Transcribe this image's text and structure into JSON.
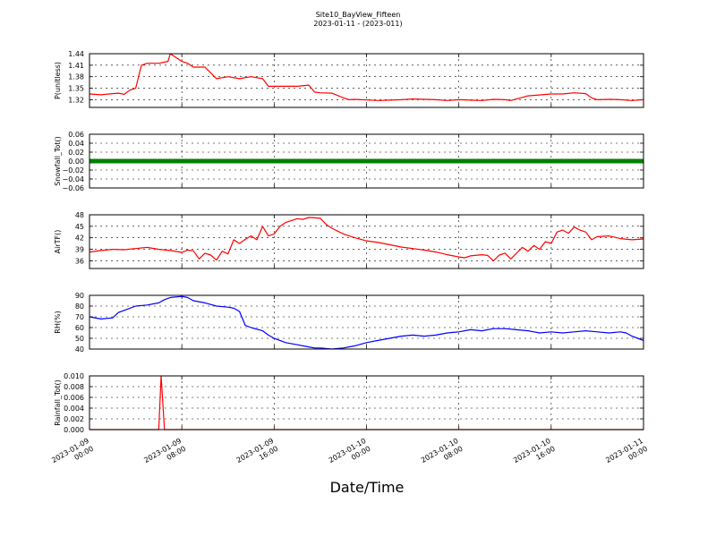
{
  "figure": {
    "title_line1": "Site10_BayView_Fifteen",
    "title_line2": "2023-01-11 - (2023-011)",
    "xlabel": "Date/Time"
  },
  "chart_data": {
    "type": "line",
    "x_ticks": [
      {
        "t": 0,
        "line1": "2023-01-09",
        "line2": "00:00"
      },
      {
        "t": 8,
        "line1": "2023-01-09",
        "line2": "08:00"
      },
      {
        "t": 16,
        "line1": "2023-01-09",
        "line2": "16:00"
      },
      {
        "t": 24,
        "line1": "2023-01-10",
        "line2": "00:00"
      },
      {
        "t": 32,
        "line1": "2023-01-10",
        "line2": "08:00"
      },
      {
        "t": 40,
        "line1": "2023-01-10",
        "line2": "16:00"
      },
      {
        "t": 48,
        "line1": "2023-01-11",
        "line2": "00:00"
      }
    ],
    "xlim": [
      0,
      48
    ],
    "grid": true,
    "panels": [
      {
        "ylabel": "P(unitless)",
        "ylim": [
          1.3,
          1.44
        ],
        "yticks": [
          "1.32",
          "1.35",
          "1.38",
          "1.41",
          "1.44"
        ],
        "ytick_values": [
          1.32,
          1.35,
          1.38,
          1.41,
          1.44
        ],
        "color": "#ff0000",
        "style": "line",
        "series": [
          [
            0,
            1.335
          ],
          [
            1,
            1.333
          ],
          [
            2,
            1.336
          ],
          [
            2.5,
            1.337
          ],
          [
            3,
            1.334
          ],
          [
            3.5,
            1.345
          ],
          [
            4,
            1.35
          ],
          [
            4.5,
            1.41
          ],
          [
            5,
            1.415
          ],
          [
            6,
            1.415
          ],
          [
            6.8,
            1.42
          ],
          [
            7,
            1.44
          ],
          [
            7.5,
            1.43
          ],
          [
            8,
            1.42
          ],
          [
            8.5,
            1.415
          ],
          [
            9,
            1.405
          ],
          [
            10,
            1.405
          ],
          [
            10.5,
            1.39
          ],
          [
            11,
            1.375
          ],
          [
            12,
            1.38
          ],
          [
            13,
            1.375
          ],
          [
            14,
            1.38
          ],
          [
            15,
            1.375
          ],
          [
            15.5,
            1.355
          ],
          [
            16,
            1.355
          ],
          [
            17,
            1.355
          ],
          [
            18,
            1.355
          ],
          [
            19,
            1.358
          ],
          [
            19.5,
            1.34
          ],
          [
            20,
            1.338
          ],
          [
            21,
            1.337
          ],
          [
            22,
            1.325
          ],
          [
            22.5,
            1.32
          ],
          [
            23,
            1.321
          ],
          [
            25,
            1.318
          ],
          [
            26,
            1.319
          ],
          [
            27,
            1.32
          ],
          [
            28,
            1.322
          ],
          [
            29,
            1.321
          ],
          [
            30,
            1.32
          ],
          [
            31,
            1.318
          ],
          [
            32,
            1.32
          ],
          [
            33,
            1.319
          ],
          [
            34,
            1.318
          ],
          [
            35,
            1.321
          ],
          [
            36,
            1.32
          ],
          [
            36.5,
            1.318
          ],
          [
            37,
            1.322
          ],
          [
            38,
            1.33
          ],
          [
            40,
            1.335
          ],
          [
            41,
            1.335
          ],
          [
            42,
            1.338
          ],
          [
            43,
            1.336
          ],
          [
            43.5,
            1.325
          ],
          [
            44,
            1.32
          ],
          [
            45,
            1.321
          ],
          [
            46,
            1.32
          ],
          [
            47,
            1.318
          ],
          [
            48,
            1.32
          ]
        ]
      },
      {
        "ylabel": "Snowfall_Tot()",
        "ylim": [
          -0.06,
          0.06
        ],
        "yticks": [
          "−0.06",
          "−0.04",
          "−0.02",
          "0.00",
          "0.02",
          "0.04",
          "0.06"
        ],
        "ytick_values": [
          -0.06,
          -0.04,
          -0.02,
          0.0,
          0.02,
          0.04,
          0.06
        ],
        "color": "#008000",
        "style": "markers",
        "series": [
          [
            0,
            0
          ],
          [
            48,
            0
          ]
        ]
      },
      {
        "ylabel": "AirTF()",
        "ylim": [
          34,
          48
        ],
        "yticks": [
          "36",
          "39",
          "42",
          "45",
          "48"
        ],
        "ytick_values": [
          36,
          39,
          42,
          45,
          48
        ],
        "color": "#ff0000",
        "style": "line",
        "series": [
          [
            0,
            38.3
          ],
          [
            1,
            38.7
          ],
          [
            2,
            39
          ],
          [
            3,
            38.9
          ],
          [
            4,
            39.2
          ],
          [
            5,
            39.5
          ],
          [
            6,
            39
          ],
          [
            7,
            38.7
          ],
          [
            8,
            38.2
          ],
          [
            8.5,
            38.8
          ],
          [
            9,
            38.6
          ],
          [
            9.5,
            36.5
          ],
          [
            10,
            38
          ],
          [
            10.5,
            37.5
          ],
          [
            11,
            36.2
          ],
          [
            11.5,
            38.5
          ],
          [
            12,
            37.8
          ],
          [
            12.5,
            41.5
          ],
          [
            13,
            40.5
          ],
          [
            13.5,
            41.6
          ],
          [
            14,
            42.5
          ],
          [
            14.5,
            41.5
          ],
          [
            15,
            45
          ],
          [
            15.5,
            42.5
          ],
          [
            16,
            43
          ],
          [
            16.5,
            45
          ],
          [
            17,
            46
          ],
          [
            17.5,
            46.5
          ],
          [
            18,
            47
          ],
          [
            18.5,
            46.8
          ],
          [
            19,
            47.3
          ],
          [
            19.5,
            47.2
          ],
          [
            20,
            47.1
          ],
          [
            20.5,
            45.5
          ],
          [
            21,
            44.5
          ],
          [
            22,
            43
          ],
          [
            23,
            42
          ],
          [
            24,
            41.2
          ],
          [
            25,
            40.8
          ],
          [
            26,
            40.2
          ],
          [
            27,
            39.6
          ],
          [
            28,
            39.2
          ],
          [
            29,
            38.8
          ],
          [
            30,
            38.3
          ],
          [
            31,
            37.6
          ],
          [
            32,
            37
          ],
          [
            32.5,
            36.8
          ],
          [
            33,
            37.3
          ],
          [
            34,
            37.6
          ],
          [
            34.5,
            37.4
          ],
          [
            35,
            36
          ],
          [
            35.5,
            37.5
          ],
          [
            36,
            38
          ],
          [
            36.5,
            36.5
          ],
          [
            37,
            38
          ],
          [
            37.5,
            39.5
          ],
          [
            38,
            38.5
          ],
          [
            38.5,
            40
          ],
          [
            39,
            39
          ],
          [
            39.5,
            41
          ],
          [
            40,
            40.5
          ],
          [
            40.5,
            43.5
          ],
          [
            41,
            44
          ],
          [
            41.5,
            43.2
          ],
          [
            42,
            44.8
          ],
          [
            42.5,
            44
          ],
          [
            43,
            43.5
          ],
          [
            43.5,
            41.5
          ],
          [
            44,
            42.3
          ],
          [
            45,
            42.5
          ],
          [
            46,
            41.8
          ],
          [
            47,
            41.5
          ],
          [
            48,
            41.7
          ]
        ]
      },
      {
        "ylabel": "RH(%)",
        "ylim": [
          40,
          90
        ],
        "yticks": [
          "40",
          "50",
          "60",
          "70",
          "80",
          "90"
        ],
        "ytick_values": [
          40,
          50,
          60,
          70,
          80,
          90
        ],
        "color": "#0000ff",
        "style": "line",
        "series": [
          [
            0,
            70
          ],
          [
            1,
            68
          ],
          [
            2,
            69
          ],
          [
            2.5,
            74
          ],
          [
            3,
            76
          ],
          [
            4,
            80
          ],
          [
            5,
            81
          ],
          [
            6,
            83
          ],
          [
            6.5,
            86
          ],
          [
            7,
            88
          ],
          [
            8,
            89
          ],
          [
            8.5,
            88
          ],
          [
            9,
            85
          ],
          [
            10,
            83
          ],
          [
            11,
            80
          ],
          [
            12,
            79
          ],
          [
            12.5,
            78
          ],
          [
            13,
            75
          ],
          [
            13.5,
            62
          ],
          [
            14,
            60
          ],
          [
            15,
            57
          ],
          [
            15.5,
            53
          ],
          [
            16,
            50
          ],
          [
            16.5,
            48
          ],
          [
            17,
            46
          ],
          [
            18,
            44
          ],
          [
            19,
            42
          ],
          [
            19.5,
            41
          ],
          [
            20,
            41
          ],
          [
            21,
            40
          ],
          [
            22,
            41
          ],
          [
            23,
            43
          ],
          [
            24,
            46
          ],
          [
            25,
            48
          ],
          [
            26,
            50
          ],
          [
            27,
            52
          ],
          [
            28,
            53
          ],
          [
            29,
            52
          ],
          [
            30,
            53
          ],
          [
            31,
            55
          ],
          [
            32,
            56
          ],
          [
            33,
            58
          ],
          [
            34,
            57
          ],
          [
            35,
            59
          ],
          [
            36,
            59
          ],
          [
            37,
            58
          ],
          [
            38,
            57
          ],
          [
            38.5,
            56
          ],
          [
            39,
            55
          ],
          [
            40,
            56
          ],
          [
            41,
            55
          ],
          [
            42,
            56
          ],
          [
            43,
            57
          ],
          [
            44,
            56
          ],
          [
            45,
            55
          ],
          [
            46,
            56
          ],
          [
            46.5,
            55
          ],
          [
            47,
            52
          ],
          [
            47.5,
            50
          ],
          [
            48,
            48
          ]
        ]
      },
      {
        "ylabel": "Rainfall_Tot()",
        "ylim": [
          0,
          0.01
        ],
        "yticks": [
          "0.000",
          "0.002",
          "0.004",
          "0.006",
          "0.008",
          "0.010"
        ],
        "ytick_values": [
          0,
          0.002,
          0.004,
          0.006,
          0.008,
          0.01
        ],
        "color": "#ff0000",
        "style": "line",
        "series": [
          [
            0,
            0
          ],
          [
            6,
            0
          ],
          [
            6.2,
            0.01
          ],
          [
            6.5,
            0
          ],
          [
            48,
            0
          ]
        ]
      }
    ]
  }
}
